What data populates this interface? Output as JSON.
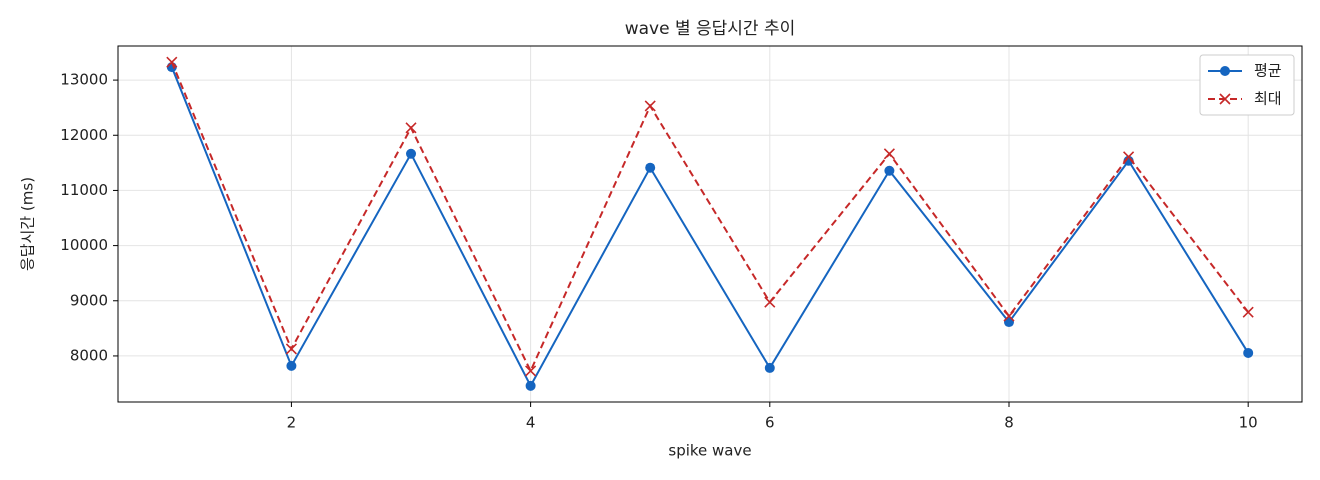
{
  "chart_data": {
    "type": "line",
    "title": "wave 별 응답시간 추이",
    "xlabel": "spike wave",
    "ylabel": "응답시간 (ms)",
    "x": [
      1,
      2,
      3,
      4,
      5,
      6,
      7,
      8,
      9,
      10
    ],
    "series": [
      {
        "name": "평균",
        "color": "#1565c0",
        "linestyle": "solid",
        "marker": "circle",
        "values": [
          13235,
          7820,
          11664,
          7458,
          11412,
          7783,
          11357,
          8614,
          11538,
          8054
        ]
      },
      {
        "name": "최대",
        "color": "#c62828",
        "linestyle": "dashed",
        "marker": "x",
        "values": [
          13325,
          8126,
          12134,
          7729,
          12531,
          8975,
          11664,
          8722,
          11610,
          8794
        ]
      }
    ],
    "xlim": [
      0.55,
      10.45
    ],
    "xticks": [
      2,
      4,
      6,
      8,
      10
    ],
    "ylim": [
      7165,
      13618
    ],
    "yticks": [
      8000,
      9000,
      10000,
      11000,
      12000,
      13000
    ],
    "grid": true,
    "legend": "upper right"
  }
}
